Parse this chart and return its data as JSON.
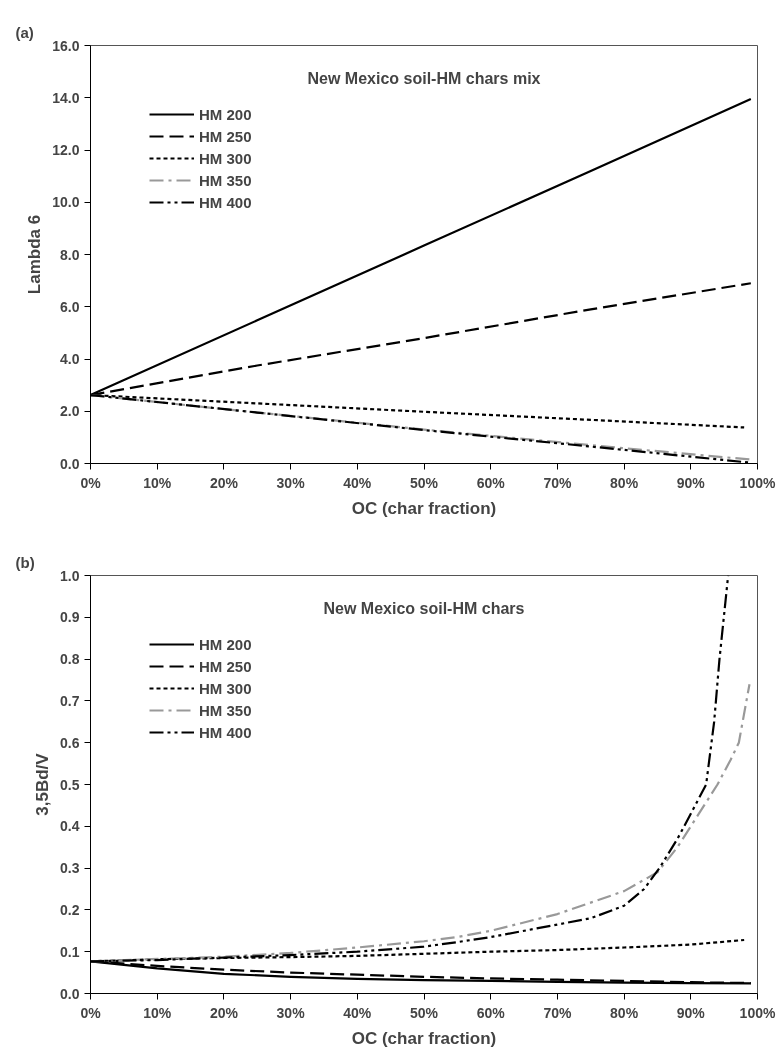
{
  "chart_data": [
    {
      "type": "line",
      "title": "New Mexico soil-HM chars mix",
      "xlabel": "OC (char fraction)",
      "ylabel": "Lambda 6",
      "annotations": [
        "(a)"
      ],
      "xlim": [
        0,
        100
      ],
      "xticks": [
        {
          "value": 0,
          "label": "0%"
        },
        {
          "value": 10,
          "label": "10%"
        },
        {
          "value": 20,
          "label": "20%"
        },
        {
          "value": 30,
          "label": "30%"
        },
        {
          "value": 40,
          "label": "40%"
        },
        {
          "value": 50,
          "label": "50%"
        },
        {
          "value": 60,
          "label": "60%"
        },
        {
          "value": 70,
          "label": "70%"
        },
        {
          "value": 80,
          "label": "80%"
        },
        {
          "value": 90,
          "label": "90%"
        },
        {
          "value": 100,
          "label": "100%"
        }
      ],
      "ylim": [
        0,
        16
      ],
      "yticks": [
        {
          "value": 0,
          "label": "0.0"
        },
        {
          "value": 2,
          "label": "2.0"
        },
        {
          "value": 4,
          "label": "4.0"
        },
        {
          "value": 6,
          "label": "6.0"
        },
        {
          "value": 8,
          "label": "8.0"
        },
        {
          "value": 10,
          "label": "10.0"
        },
        {
          "value": 12,
          "label": "12.0"
        },
        {
          "value": 14,
          "label": "14.0"
        },
        {
          "value": 16,
          "label": "16.0"
        }
      ],
      "grid": false,
      "legend": "top left",
      "series": [
        {
          "name": "HM 200",
          "color": "#000000",
          "line_style": "solid",
          "x": [
            0,
            25,
            50,
            75,
            99
          ],
          "values": [
            2.62,
            5.48,
            8.34,
            11.2,
            13.95
          ]
        },
        {
          "name": "HM 250",
          "color": "#000000",
          "line_style": "dashed",
          "x": [
            0,
            25,
            50,
            75,
            99
          ],
          "values": [
            2.62,
            3.75,
            4.8,
            5.9,
            6.9
          ]
        },
        {
          "name": "HM 300",
          "color": "#000000",
          "line_style": "dotted",
          "x": [
            0,
            25,
            50,
            75,
            98
          ],
          "values": [
            2.62,
            2.3,
            1.98,
            1.67,
            1.38
          ]
        },
        {
          "name": "HM 350",
          "color": "#999999",
          "line_style": "dashdot",
          "x": [
            0,
            25,
            50,
            75,
            99
          ],
          "values": [
            2.62,
            1.95,
            1.3,
            0.7,
            0.15
          ]
        },
        {
          "name": "HM 400",
          "color": "#000000",
          "line_style": "dashdotdot",
          "x": [
            0,
            25,
            50,
            75,
            99
          ],
          "values": [
            2.62,
            1.95,
            1.28,
            0.65,
            0.03
          ]
        }
      ]
    },
    {
      "type": "line",
      "title": "New Mexico soil-HM chars",
      "xlabel": "OC (char fraction)",
      "ylabel": "3,5Bd/V",
      "annotations": [
        "(b)"
      ],
      "xlim": [
        0,
        100
      ],
      "xticks": [
        {
          "value": 0,
          "label": "0%"
        },
        {
          "value": 10,
          "label": "10%"
        },
        {
          "value": 20,
          "label": "20%"
        },
        {
          "value": 30,
          "label": "30%"
        },
        {
          "value": 40,
          "label": "40%"
        },
        {
          "value": 50,
          "label": "50%"
        },
        {
          "value": 60,
          "label": "60%"
        },
        {
          "value": 70,
          "label": "70%"
        },
        {
          "value": 80,
          "label": "80%"
        },
        {
          "value": 90,
          "label": "90%"
        },
        {
          "value": 100,
          "label": "100%"
        }
      ],
      "ylim": [
        0,
        1
      ],
      "yticks": [
        {
          "value": 0,
          "label": "0.0"
        },
        0.1,
        0.2,
        0.3,
        0.4,
        0.5,
        0.6,
        0.7,
        0.8,
        0.9,
        {
          "value": 1,
          "label": "1.0"
        }
      ],
      "grid": false,
      "legend": "top left",
      "series": [
        {
          "name": "HM 200",
          "color": "#000000",
          "line_style": "solid",
          "x": [
            0,
            10,
            20,
            30,
            40,
            50,
            60,
            70,
            80,
            90,
            99
          ],
          "values": [
            0.077,
            0.06,
            0.047,
            0.04,
            0.035,
            0.032,
            0.03,
            0.028,
            0.026,
            0.025,
            0.024
          ]
        },
        {
          "name": "HM 250",
          "color": "#000000",
          "line_style": "dashed",
          "x": [
            0,
            10,
            20,
            30,
            40,
            50,
            60,
            70,
            80,
            90,
            99
          ],
          "values": [
            0.077,
            0.066,
            0.057,
            0.05,
            0.045,
            0.04,
            0.036,
            0.033,
            0.03,
            0.027,
            0.025
          ]
        },
        {
          "name": "HM 300",
          "color": "#000000",
          "line_style": "dotted",
          "x": [
            0,
            10,
            20,
            30,
            40,
            50,
            60,
            70,
            80,
            90,
            98
          ],
          "values": [
            0.077,
            0.082,
            0.085,
            0.087,
            0.09,
            0.095,
            0.1,
            0.104,
            0.11,
            0.117,
            0.128
          ]
        },
        {
          "name": "HM 350",
          "color": "#999999",
          "line_style": "dashdot",
          "x": [
            0,
            20,
            30,
            40,
            50,
            55,
            60,
            70,
            80,
            85,
            88,
            90,
            92,
            94,
            96,
            97.2,
            98.8
          ],
          "values": [
            0.077,
            0.088,
            0.097,
            0.11,
            0.125,
            0.135,
            0.15,
            0.19,
            0.245,
            0.29,
            0.35,
            0.4,
            0.45,
            0.5,
            0.56,
            0.6,
            0.74
          ]
        },
        {
          "name": "HM 400",
          "color": "#000000",
          "line_style": "dashdotdot",
          "x": [
            0,
            10,
            20,
            30,
            40,
            50,
            55,
            60,
            70,
            75,
            80,
            83,
            85.3,
            88,
            90,
            92.3,
            93.5,
            94.3,
            95.6
          ],
          "values": [
            0.077,
            0.08,
            0.086,
            0.092,
            0.1,
            0.112,
            0.123,
            0.135,
            0.165,
            0.18,
            0.21,
            0.25,
            0.3,
            0.37,
            0.43,
            0.5,
            0.65,
            0.8,
            1.0
          ]
        }
      ]
    }
  ]
}
